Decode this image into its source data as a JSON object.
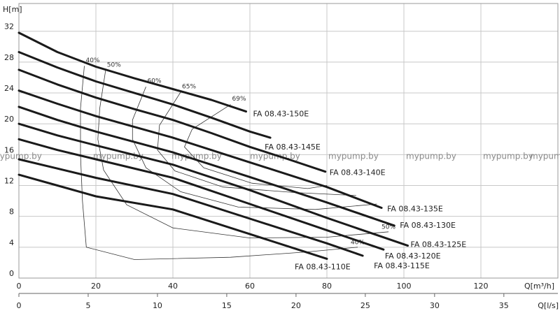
{
  "chart_data": {
    "type": "line",
    "y_label": "H[m]",
    "x_label": "Q[m³/h]",
    "x2_label": "Q[l/s]",
    "xlim": [
      0,
      140
    ],
    "xticks": [
      0,
      20,
      40,
      60,
      80,
      100,
      120
    ],
    "x2lim": [
      0,
      38.9
    ],
    "x2ticks": [
      0,
      5,
      10,
      15,
      20,
      25,
      30,
      35
    ],
    "ylim": [
      0,
      35.6
    ],
    "yticks": [
      0,
      4,
      8,
      12,
      16,
      20,
      24,
      28,
      32
    ],
    "grid": true,
    "color": "#1a1a1a",
    "watermark": "mypump.by",
    "series": [
      {
        "name": "FA 08.43-150E",
        "x": [
          0,
          10,
          20,
          30,
          40,
          50,
          59
        ],
        "values": [
          31.8,
          29.3,
          27.4,
          25.9,
          24.5,
          23.1,
          21.6
        ]
      },
      {
        "name": "FA 08.43-145E",
        "x": [
          0,
          10,
          20,
          30,
          40,
          50,
          60,
          65.3
        ],
        "values": [
          29.3,
          27.3,
          25.5,
          24,
          22.5,
          20.8,
          19,
          18.2
        ]
      },
      {
        "name": "FA 08.43-140E",
        "x": [
          0,
          10,
          20,
          30,
          40,
          50,
          60,
          70,
          79.6
        ],
        "values": [
          27,
          25.1,
          23.4,
          21.9,
          20.5,
          18.8,
          17,
          15.4,
          13.8
        ]
      },
      {
        "name": "FA 08.43-135E",
        "x": [
          0,
          10,
          20,
          40,
          60,
          80,
          94.2
        ],
        "values": [
          24.3,
          22.6,
          21,
          18.2,
          15,
          11.8,
          9.1
        ]
      },
      {
        "name": "FA 08.43-130E",
        "x": [
          0,
          10,
          20,
          40,
          60,
          80,
          97.5
        ],
        "values": [
          22.2,
          20.5,
          19,
          16.3,
          13.1,
          9.8,
          6.8
        ]
      },
      {
        "name": "FA 08.43-125E",
        "x": [
          0,
          10,
          20,
          40,
          60,
          80,
          101
        ],
        "values": [
          20,
          18.5,
          17.2,
          14.7,
          11.4,
          7.8,
          4.2
        ]
      },
      {
        "name": "FA 08.43-120E",
        "x": [
          0,
          10,
          20,
          40,
          60,
          80,
          94.7
        ],
        "values": [
          18,
          16.6,
          15.4,
          13,
          9.6,
          6.2,
          3.7
        ]
      },
      {
        "name": "FA 08.43-115E",
        "x": [
          0,
          10,
          20,
          40,
          60,
          80,
          89.3
        ],
        "values": [
          15.4,
          14.2,
          13,
          10.9,
          7.7,
          4.5,
          2.9
        ]
      },
      {
        "name": "FA 08.43-110E",
        "x": [
          0,
          10,
          20,
          40,
          60,
          80
        ],
        "values": [
          13.4,
          12,
          10.6,
          8.9,
          5.7,
          2.5
        ]
      }
    ],
    "efficiency_curves": [
      {
        "label": "40%",
        "x": [
          17,
          16,
          16,
          16.5,
          17.5,
          30,
          55,
          75,
          88
        ],
        "values": [
          27.5,
          22,
          16,
          10,
          4,
          2.4,
          2.7,
          3.4,
          4
        ]
      },
      {
        "label": "50%",
        "x": [
          22.5,
          21,
          20.5,
          22,
          28,
          40,
          60,
          80,
          96
        ],
        "values": [
          26.9,
          22,
          18,
          14,
          9.5,
          6.5,
          5.2,
          5.3,
          6
        ]
      },
      {
        "label": "60%",
        "x": [
          33,
          29.5,
          29.5,
          33,
          42,
          57,
          77,
          93
        ],
        "values": [
          24.8,
          20.5,
          18,
          14.3,
          11.2,
          9.2,
          8.9,
          9.6
        ]
      },
      {
        "label": "65%",
        "x": [
          42,
          36.5,
          36,
          40.5,
          53,
          71.5,
          87.6
        ],
        "values": [
          24.1,
          19.8,
          16.6,
          13.9,
          11.8,
          11.1,
          10.7
        ]
      },
      {
        "label": "69%",
        "x": [
          55,
          45,
          43,
          48,
          60.5,
          75,
          80
        ],
        "values": [
          22.5,
          19.3,
          17,
          14.3,
          12.3,
          11.6,
          12
        ]
      }
    ]
  }
}
